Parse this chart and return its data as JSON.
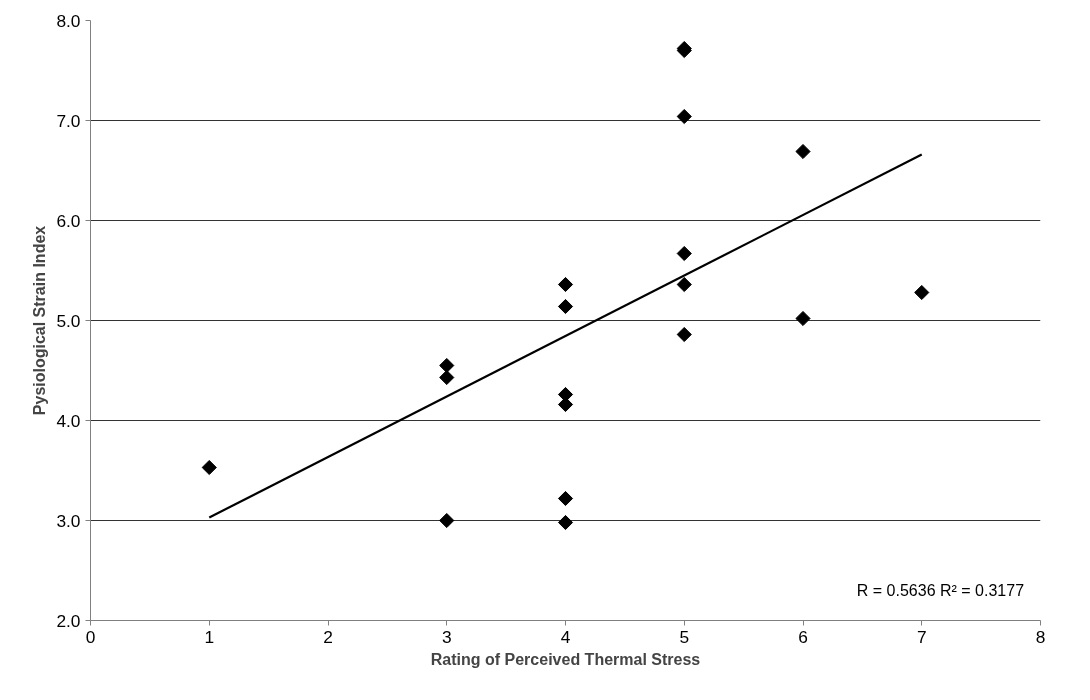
{
  "chart_data": {
    "type": "scatter",
    "xlabel": "Rating of Perceived Thermal Stress",
    "ylabel": "Pysiological Strain Index",
    "xlim": [
      0,
      8
    ],
    "xticks": [
      0,
      1,
      2,
      3,
      4,
      5,
      6,
      7,
      8
    ],
    "ylim": [
      2,
      8
    ],
    "yticks": [
      {
        "value": 2,
        "label": "2.0"
      },
      {
        "value": 3,
        "label": "3.0"
      },
      {
        "value": 4,
        "label": "4.0"
      },
      {
        "value": 5,
        "label": "5.0"
      },
      {
        "value": 6,
        "label": "6.0"
      },
      {
        "value": 7,
        "label": "7.0"
      },
      {
        "value": 8,
        "label": "8.0"
      }
    ],
    "grid": "y",
    "marker": "diamond",
    "series": [
      {
        "color": "#000000",
        "x": [
          1,
          3,
          3,
          3,
          4,
          4,
          4,
          4,
          4,
          4,
          5,
          5,
          5,
          5,
          5,
          5,
          6,
          6,
          7
        ],
        "values": [
          3.53,
          4.55,
          4.43,
          3.0,
          5.36,
          5.14,
          4.26,
          4.16,
          3.22,
          2.98,
          7.72,
          7.7,
          7.04,
          5.67,
          5.36,
          4.86,
          6.69,
          5.02,
          5.28
        ]
      },
      {
        "type": "line",
        "marker": "none",
        "color": "#000000",
        "x": [
          1,
          7
        ],
        "values": [
          3.03,
          6.66
        ]
      }
    ],
    "annotations": [
      "R = 0.5636  R² = 0.3177"
    ]
  }
}
